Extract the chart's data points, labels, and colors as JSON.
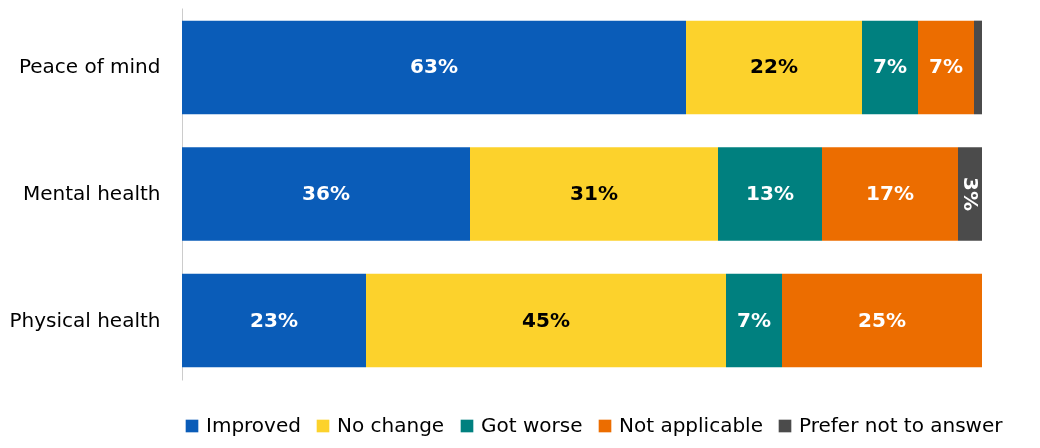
{
  "chart_data": {
    "type": "bar",
    "orientation": "horizontal",
    "stacked": true,
    "categories": [
      "Peace of mind",
      "Mental health",
      "Physical health"
    ],
    "series": [
      {
        "name": "Improved",
        "color": "#0a5cb8",
        "values": [
          63,
          36,
          23
        ],
        "value_labels": [
          "63%",
          "36%",
          "23%"
        ]
      },
      {
        "name": "No change",
        "color": "#fcd22c",
        "values": [
          22,
          31,
          45
        ],
        "value_labels": [
          "22%",
          "31%",
          "45%"
        ]
      },
      {
        "name": "Got worse",
        "color": "#00807f",
        "values": [
          7,
          13,
          7
        ],
        "value_labels": [
          "7%",
          "13%",
          "7%"
        ]
      },
      {
        "name": "Not applicable",
        "color": "#ec6d00",
        "values": [
          7,
          17,
          25
        ],
        "value_labels": [
          "7%",
          "17%",
          "25%"
        ]
      },
      {
        "name": "Prefer not to answer",
        "color": "#4b4b4b",
        "values": [
          1,
          3,
          0
        ],
        "value_labels": [
          null,
          "3%",
          null
        ]
      }
    ],
    "legend": "bottom",
    "tick_labels": "y"
  }
}
